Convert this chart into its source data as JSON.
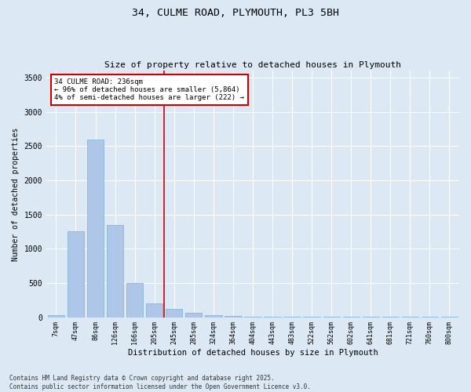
{
  "title1": "34, CULME ROAD, PLYMOUTH, PL3 5BH",
  "title2": "Size of property relative to detached houses in Plymouth",
  "xlabel": "Distribution of detached houses by size in Plymouth",
  "ylabel": "Number of detached properties",
  "categories": [
    "7sqm",
    "47sqm",
    "86sqm",
    "126sqm",
    "166sqm",
    "205sqm",
    "245sqm",
    "285sqm",
    "324sqm",
    "364sqm",
    "404sqm",
    "443sqm",
    "483sqm",
    "522sqm",
    "562sqm",
    "602sqm",
    "641sqm",
    "681sqm",
    "721sqm",
    "760sqm",
    "800sqm"
  ],
  "values": [
    30,
    1250,
    2600,
    1350,
    500,
    200,
    120,
    65,
    30,
    20,
    10,
    5,
    3,
    2,
    2,
    1,
    1,
    1,
    1,
    1,
    1
  ],
  "bar_color": "#aec6e8",
  "bar_edgecolor": "#7aafd4",
  "highlight_index": 6,
  "highlight_line_color": "#cc0000",
  "annotation_line1": "34 CULME ROAD: 236sqm",
  "annotation_line2": "← 96% of detached houses are smaller (5,864)",
  "annotation_line3": "4% of semi-detached houses are larger (222) →",
  "annotation_box_edgecolor": "#cc0000",
  "background_color": "#dce9f5",
  "plot_bg_color": "#dce9f5",
  "ylim": [
    0,
    3600
  ],
  "yticks": [
    0,
    500,
    1000,
    1500,
    2000,
    2500,
    3000,
    3500
  ],
  "footer1": "Contains HM Land Registry data © Crown copyright and database right 2025.",
  "footer2": "Contains public sector information licensed under the Open Government Licence v3.0."
}
